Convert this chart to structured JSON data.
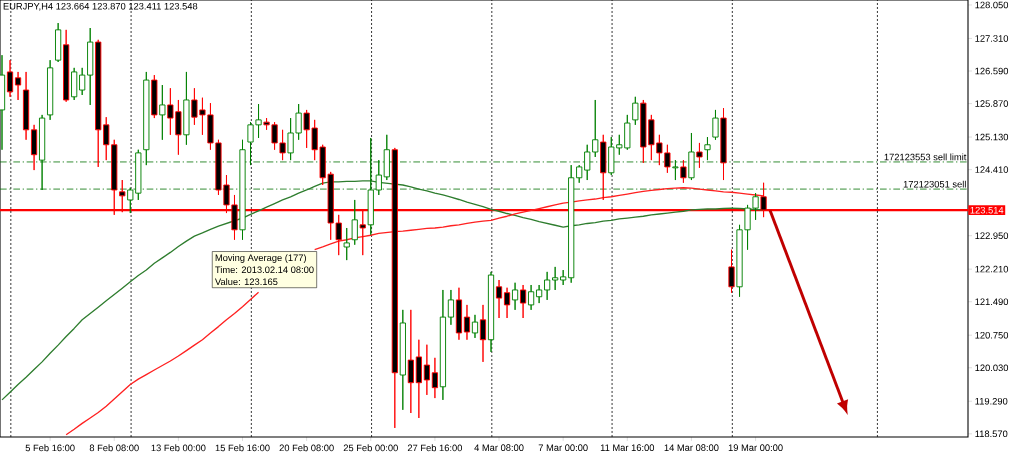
{
  "chart_data": {
    "type": "candlestick",
    "title": "EURJPY,H4  123.664 123.870 123.411 123.548",
    "annotations": [
      "Moving Average (177)",
      "Time: 2013.02.14 08:00",
      "Value: 123.165"
    ],
    "categories": [
      null,
      null,
      null,
      null,
      null,
      null,
      "5 Feb 16:00",
      null,
      null,
      null,
      null,
      null,
      null,
      null,
      "8 Feb 08:00",
      null,
      null,
      null,
      null,
      null,
      null,
      null,
      "13 Feb 00:00",
      null,
      null,
      null,
      null,
      null,
      null,
      null,
      "15 Feb 16:00",
      null,
      null,
      null,
      null,
      null,
      null,
      null,
      "20 Feb 08:00",
      null,
      null,
      null,
      null,
      null,
      null,
      null,
      "25 Feb 00:00",
      null,
      null,
      null,
      null,
      null,
      null,
      null,
      "27 Feb 16:00",
      null,
      null,
      null,
      null,
      null,
      null,
      null,
      "4 Mar 08:00",
      null,
      null,
      null,
      null,
      null,
      null,
      null,
      "7 Mar 00:00",
      null,
      null,
      null,
      null,
      null,
      null,
      null,
      "11 Mar 16:00",
      null,
      null,
      null,
      null,
      null,
      null,
      null,
      "14 Mar 08:00",
      null,
      null,
      null,
      null,
      null,
      null,
      null,
      "19 Mar 00:00",
      null
    ],
    "ohlc": [
      [
        125.73,
        126.94,
        124.85,
        126.5
      ],
      [
        126.57,
        126.83,
        126.02,
        126.13
      ],
      [
        126.44,
        126.57,
        125.95,
        126.28
      ],
      [
        126.17,
        126.57,
        125.07,
        125.29
      ],
      [
        125.29,
        125.4,
        124.4,
        124.74
      ],
      [
        124.62,
        125.62,
        123.96,
        125.55
      ],
      [
        125.62,
        126.83,
        125.51,
        126.66
      ],
      [
        126.83,
        127.65,
        126.79,
        127.5
      ],
      [
        127.17,
        127.5,
        125.91,
        125.95
      ],
      [
        126.02,
        126.66,
        125.95,
        126.57
      ],
      [
        126.17,
        126.66,
        126.06,
        126.5
      ],
      [
        126.5,
        127.54,
        125.84,
        127.23
      ],
      [
        127.23,
        127.28,
        124.47,
        125.29
      ],
      [
        125.4,
        125.57,
        124.62,
        124.96
      ],
      [
        124.96,
        125.07,
        123.41,
        123.96
      ],
      [
        123.92,
        124.18,
        123.47,
        123.83
      ],
      [
        123.74,
        124.01,
        123.45,
        123.96
      ],
      [
        123.89,
        124.85,
        123.74,
        124.78
      ],
      [
        124.85,
        126.57,
        124.51,
        126.39
      ],
      [
        126.39,
        126.5,
        125.55,
        125.62
      ],
      [
        125.62,
        126.28,
        125.07,
        125.84
      ],
      [
        125.84,
        126.21,
        125.18,
        125.55
      ],
      [
        125.69,
        125.95,
        124.74,
        125.18
      ],
      [
        125.18,
        126.57,
        124.96,
        125.95
      ],
      [
        125.95,
        126.21,
        125.4,
        125.57
      ],
      [
        125.73,
        126.0,
        125.18,
        125.62
      ],
      [
        125.62,
        125.88,
        124.85,
        125.0
      ],
      [
        125.0,
        125.07,
        123.85,
        123.96
      ],
      [
        124.07,
        124.29,
        123.45,
        123.63
      ],
      [
        123.63,
        123.85,
        122.86,
        123.08
      ],
      [
        123.08,
        125.07,
        122.86,
        124.85
      ],
      [
        125.02,
        125.46,
        124.51,
        125.4
      ],
      [
        125.4,
        125.86,
        125.11,
        125.51
      ],
      [
        125.46,
        125.55,
        125.29,
        125.4
      ],
      [
        125.4,
        125.46,
        124.85,
        125.0
      ],
      [
        125.0,
        125.29,
        124.62,
        124.78
      ],
      [
        124.78,
        125.55,
        124.62,
        125.22
      ],
      [
        125.22,
        125.86,
        125.07,
        125.66
      ],
      [
        125.66,
        125.73,
        124.89,
        125.29
      ],
      [
        125.33,
        125.51,
        124.62,
        124.85
      ],
      [
        124.91,
        124.96,
        124.07,
        124.23
      ],
      [
        124.31,
        124.36,
        122.86,
        123.23
      ],
      [
        123.23,
        123.41,
        122.52,
        122.86
      ],
      [
        122.7,
        123.12,
        122.41,
        122.79
      ],
      [
        122.86,
        123.74,
        122.75,
        123.3
      ],
      [
        123.19,
        123.52,
        122.52,
        123.12
      ],
      [
        123.19,
        125.11,
        122.97,
        123.96
      ],
      [
        123.96,
        124.62,
        123.85,
        124.29
      ],
      [
        124.25,
        125.18,
        124.18,
        124.85
      ],
      [
        124.85,
        124.89,
        118.7,
        119.92
      ],
      [
        119.87,
        121.31,
        119.1,
        121.02
      ],
      [
        120.2,
        121.31,
        119.03,
        119.7
      ],
      [
        120.27,
        120.65,
        118.92,
        119.7
      ],
      [
        120.09,
        120.54,
        119.43,
        119.76
      ],
      [
        119.92,
        120.25,
        119.36,
        119.59
      ],
      [
        119.61,
        121.75,
        119.32,
        121.15
      ],
      [
        121.15,
        121.75,
        120.98,
        121.53
      ],
      [
        121.53,
        121.8,
        120.65,
        120.8
      ],
      [
        121.15,
        121.42,
        120.65,
        120.82
      ],
      [
        120.8,
        121.2,
        120.69,
        121.04
      ],
      [
        121.09,
        121.42,
        120.16,
        120.65
      ],
      [
        120.65,
        122.15,
        120.38,
        122.08
      ],
      [
        121.82,
        121.97,
        121.13,
        121.57
      ],
      [
        121.69,
        121.8,
        121.13,
        121.42
      ],
      [
        121.53,
        121.91,
        121.31,
        121.75
      ],
      [
        121.75,
        121.86,
        121.13,
        121.46
      ],
      [
        121.42,
        121.86,
        121.31,
        121.71
      ],
      [
        121.6,
        121.86,
        121.46,
        121.75
      ],
      [
        121.75,
        122.15,
        121.53,
        121.97
      ],
      [
        121.97,
        122.26,
        121.75,
        122.02
      ],
      [
        121.97,
        122.19,
        121.86,
        122.04
      ],
      [
        122.02,
        124.51,
        121.91,
        124.23
      ],
      [
        124.23,
        124.51,
        124.12,
        124.47
      ],
      [
        124.4,
        124.96,
        124.18,
        124.8
      ],
      [
        124.8,
        125.95,
        124.69,
        125.07
      ],
      [
        125.02,
        125.18,
        123.74,
        124.34
      ],
      [
        124.34,
        125.13,
        124.29,
        124.91
      ],
      [
        124.89,
        125.18,
        124.74,
        124.96
      ],
      [
        124.89,
        125.62,
        124.85,
        125.44
      ],
      [
        125.51,
        126.02,
        125.4,
        125.88
      ],
      [
        125.88,
        125.95,
        124.56,
        124.91
      ],
      [
        125.51,
        125.62,
        124.62,
        124.96
      ],
      [
        125.0,
        125.18,
        124.51,
        124.78
      ],
      [
        124.78,
        124.96,
        124.34,
        124.47
      ],
      [
        124.45,
        124.62,
        124.18,
        124.47
      ],
      [
        124.47,
        124.62,
        124.12,
        124.23
      ],
      [
        124.23,
        125.22,
        124.18,
        124.8
      ],
      [
        124.8,
        125.0,
        124.45,
        124.69
      ],
      [
        124.85,
        125.13,
        124.62,
        124.96
      ],
      [
        125.13,
        125.73,
        125.07,
        125.55
      ],
      [
        125.55,
        125.77,
        124.18,
        124.56
      ],
      [
        122.26,
        122.64,
        121.69,
        121.82
      ],
      [
        121.82,
        123.19,
        121.6,
        123.08
      ],
      [
        123.08,
        123.63,
        122.64,
        123.56
      ],
      [
        123.56,
        123.89,
        123.3,
        123.81
      ],
      [
        123.81,
        124.12,
        123.36,
        123.52
      ]
    ],
    "series": [
      {
        "type": "line",
        "color": "#2e7d2e",
        "values": [
          119.32,
          119.49,
          119.66,
          119.82,
          119.99,
          120.16,
          120.35,
          120.53,
          120.72,
          120.9,
          121.09,
          121.23,
          121.37,
          121.51,
          121.65,
          121.79,
          121.93,
          122.07,
          122.19,
          122.34,
          122.46,
          122.58,
          122.71,
          122.83,
          122.94,
          123.01,
          123.09,
          123.16,
          123.22,
          123.28,
          123.34,
          123.42,
          123.5,
          123.58,
          123.66,
          123.74,
          123.81,
          123.89,
          123.96,
          124.04,
          124.11,
          124.14,
          124.14,
          124.15,
          124.15,
          124.16,
          124.16,
          124.13,
          124.11,
          124.09,
          124.07,
          124.03,
          123.98,
          123.94,
          123.89,
          123.85,
          123.8,
          123.75,
          123.69,
          123.64,
          123.59,
          123.53,
          123.49,
          123.44,
          123.4,
          123.35,
          123.31,
          123.26,
          123.22,
          123.18,
          123.14,
          123.17,
          123.19,
          123.22,
          123.24,
          123.27,
          123.29,
          123.32,
          123.34,
          123.36,
          123.38,
          123.41,
          123.43,
          123.45,
          123.47,
          123.49,
          123.52,
          123.53,
          123.54,
          123.54,
          123.55,
          123.56,
          123.55,
          123.54,
          123.53,
          123.52
        ]
      },
      {
        "type": "line",
        "color": "#ff2020",
        "values": [
          null,
          null,
          null,
          null,
          null,
          null,
          null,
          null,
          118.55,
          118.67,
          118.8,
          118.92,
          119.04,
          119.18,
          119.34,
          119.5,
          119.66,
          119.78,
          119.88,
          119.98,
          120.08,
          120.18,
          120.29,
          120.41,
          120.53,
          120.65,
          120.8,
          120.94,
          121.09,
          121.23,
          121.38,
          121.54,
          121.7,
          null,
          null,
          null,
          null,
          null,
          null,
          122.64,
          122.7,
          122.77,
          122.83,
          122.86,
          122.9,
          122.93,
          122.96,
          123.0,
          123.02,
          123.04,
          123.05,
          123.07,
          123.09,
          123.11,
          123.12,
          123.14,
          123.17,
          123.19,
          123.22,
          123.25,
          123.27,
          123.29,
          123.34,
          123.38,
          123.43,
          123.47,
          123.51,
          123.55,
          123.59,
          123.63,
          123.67,
          123.69,
          123.72,
          123.74,
          123.76,
          123.79,
          123.81,
          123.84,
          123.87,
          123.9,
          123.93,
          123.95,
          123.97,
          123.99,
          124.0,
          124.01,
          124.0,
          123.98,
          123.96,
          123.94,
          123.92,
          123.91,
          123.89,
          123.87,
          123.85,
          123.83
        ]
      }
    ],
    "ylim": [
      118.5,
      128.16
    ],
    "yticks": [
      {
        "value": 118.57,
        "label": "118.570"
      },
      {
        "value": 119.29,
        "label": "119.290"
      },
      {
        "value": 120.03,
        "label": "120.030"
      },
      {
        "value": 120.75,
        "label": "120.750"
      },
      {
        "value": 121.49,
        "label": "121.490"
      },
      {
        "value": 122.21,
        "label": "122.210"
      },
      {
        "value": 122.95,
        "label": "122.950"
      },
      {
        "value": 124.41,
        "label": "124.410"
      },
      {
        "value": 125.13,
        "label": "125.130"
      },
      {
        "value": 125.87,
        "label": "125.870"
      },
      {
        "value": 126.59,
        "label": "126.590"
      },
      {
        "value": 127.31,
        "label": "127.310"
      },
      {
        "value": 128.05,
        "label": "128.050"
      }
    ],
    "ref_lines": [
      {
        "axis": "y",
        "value": 123.514,
        "label": "123.514",
        "color": "#ff0000",
        "line_style": "solid"
      },
      {
        "axis": "y",
        "value": 124.58,
        "label": "172123553 sell limit",
        "color": "#007000",
        "line_style": "dashed"
      },
      {
        "axis": "y",
        "value": 123.98,
        "label": "172123051 sell",
        "color": "#007000",
        "line_style": "dashed"
      }
    ],
    "grid": "x"
  }
}
